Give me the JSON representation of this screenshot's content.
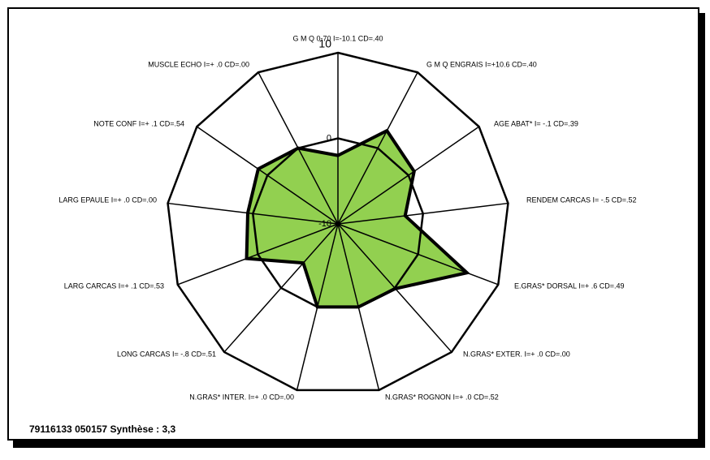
{
  "chart_data": {
    "type": "radar",
    "categories": [
      "G M Q    0-70  I=-10.1 CD=.40",
      "G M Q ENGRAIS  I=+10.6 CD=.40",
      "AGE   ABAT*  I=  -.1 CD=.39",
      "RENDEM  CARCAS I=  -.5 CD=.52",
      "E.GRAS*  DORSAL I=+ .6 CD=.49",
      "N.GRAS*  EXTER.  I=+ .0 CD=.00",
      "N.GRAS*  ROGNON  I=+ .0 CD=.52",
      "N.GRAS*  INTER.  I=+ .0 CD=.00",
      "LONG  CARCAS I=  -.8 CD=.51",
      "LARG  CARCAS I=+ .1 CD=.53",
      "LARG  EPAULE  I=+ .0 CD=.00",
      "NOTE   CONF I=+ .1 CD=.54",
      "MUSCLE   ECHO I=+ .0 CD=.00"
    ],
    "values": [
      -2.0,
      2.3,
      0.8,
      -2.1,
      6.1,
      0.1,
      0.0,
      0.0,
      -3.9,
      1.4,
      0.6,
      1.3,
      0.0
    ],
    "color": "#92d050",
    "ylim": [
      -10,
      10
    ],
    "yticks": [
      -10,
      0,
      10
    ],
    "footer": "79116133 050157   Synthèse :  3,3"
  }
}
